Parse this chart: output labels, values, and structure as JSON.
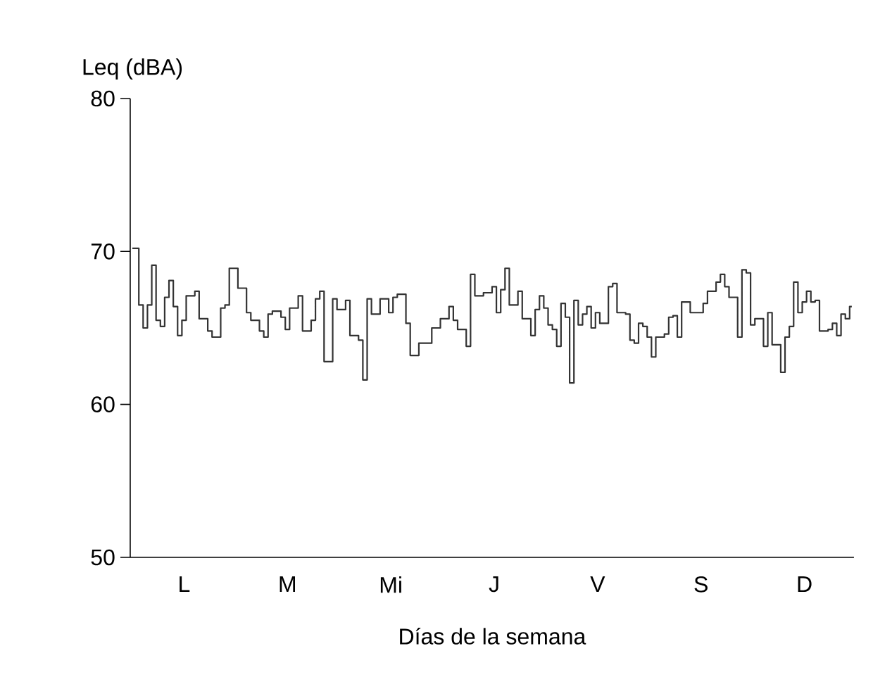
{
  "chart_data": {
    "type": "step",
    "ylabel": "Leq (dBA)",
    "xlabel": "Días de la semana",
    "ylim": [
      50,
      80
    ],
    "yticks": [
      50,
      60,
      70,
      80
    ],
    "categories": [
      null,
      null,
      null,
      null,
      null,
      null,
      null,
      null,
      null,
      null,
      null,
      null,
      "L",
      null,
      null,
      null,
      null,
      null,
      null,
      null,
      null,
      null,
      null,
      null,
      null,
      null,
      null,
      null,
      null,
      null,
      null,
      null,
      null,
      null,
      null,
      null,
      "M",
      null,
      null,
      null,
      null,
      null,
      null,
      null,
      null,
      null,
      null,
      null,
      null,
      null,
      null,
      null,
      null,
      null,
      null,
      null,
      null,
      null,
      null,
      null,
      "Mi",
      null,
      null,
      null,
      null,
      null,
      null,
      null,
      null,
      null,
      null,
      null,
      null,
      null,
      null,
      null,
      null,
      null,
      null,
      null,
      null,
      null,
      null,
      null,
      "J",
      null,
      null,
      null,
      null,
      null,
      null,
      null,
      null,
      null,
      null,
      null,
      null,
      null,
      null,
      null,
      null,
      null,
      null,
      null,
      null,
      null,
      null,
      null,
      "V",
      null,
      null,
      null,
      null,
      null,
      null,
      null,
      null,
      null,
      null,
      null,
      null,
      null,
      null,
      null,
      null,
      null,
      null,
      null,
      null,
      null,
      null,
      null,
      "S",
      null,
      null,
      null,
      null,
      null,
      null,
      null,
      null,
      null,
      null,
      null,
      null,
      null,
      null,
      null,
      null,
      null,
      null,
      null,
      null,
      null,
      null,
      null,
      "D",
      null,
      null,
      null,
      null,
      null,
      null,
      null,
      null,
      null,
      null,
      null
    ],
    "series": [
      {
        "color": "#333333",
        "values": [
          70.2,
          70.2,
          66.5,
          65.0,
          66.5,
          69.1,
          65.5,
          65.1,
          67.0,
          68.1,
          66.4,
          64.5,
          65.5,
          67.1,
          67.1,
          67.4,
          65.6,
          65.6,
          64.8,
          64.4,
          64.4,
          66.3,
          66.5,
          68.9,
          68.9,
          67.6,
          67.6,
          66.0,
          65.5,
          65.5,
          64.8,
          64.4,
          65.9,
          66.1,
          66.1,
          65.7,
          64.9,
          66.3,
          66.3,
          67.1,
          64.8,
          64.8,
          65.5,
          66.9,
          67.4,
          62.8,
          62.8,
          66.9,
          66.2,
          66.2,
          66.8,
          64.5,
          64.5,
          64.2,
          61.6,
          66.9,
          65.9,
          65.9,
          66.9,
          66.9,
          66.0,
          67.0,
          67.2,
          67.2,
          65.3,
          63.2,
          63.2,
          64.0,
          64.0,
          64.0,
          65.0,
          65.0,
          65.6,
          65.6,
          66.4,
          65.5,
          64.9,
          64.9,
          63.8,
          68.5,
          67.1,
          67.1,
          67.3,
          67.3,
          67.7,
          66.0,
          67.5,
          68.9,
          66.5,
          66.5,
          67.4,
          65.6,
          65.6,
          64.5,
          66.2,
          67.1,
          66.3,
          65.2,
          64.9,
          63.8,
          66.6,
          65.7,
          61.4,
          66.8,
          65.2,
          65.9,
          66.4,
          65.0,
          66.0,
          65.3,
          65.3,
          67.7,
          67.9,
          66.0,
          66.0,
          65.9,
          64.2,
          64.0,
          65.3,
          65.1,
          64.4,
          63.1,
          64.4,
          64.4,
          64.6,
          65.7,
          65.8,
          64.4,
          66.7,
          66.7,
          66.0,
          66.0,
          66.0,
          66.6,
          67.4,
          67.4,
          68.0,
          68.5,
          67.7,
          67.0,
          67.0,
          64.4,
          68.8,
          68.6,
          65.2,
          65.6,
          65.6,
          63.8,
          66.0,
          63.9,
          63.9,
          62.1,
          64.4,
          65.1,
          68.0,
          66.0,
          66.7,
          67.4,
          66.7,
          66.8,
          64.8,
          64.8,
          64.9,
          65.3,
          64.5,
          65.9,
          65.6,
          66.4
        ]
      }
    ]
  }
}
